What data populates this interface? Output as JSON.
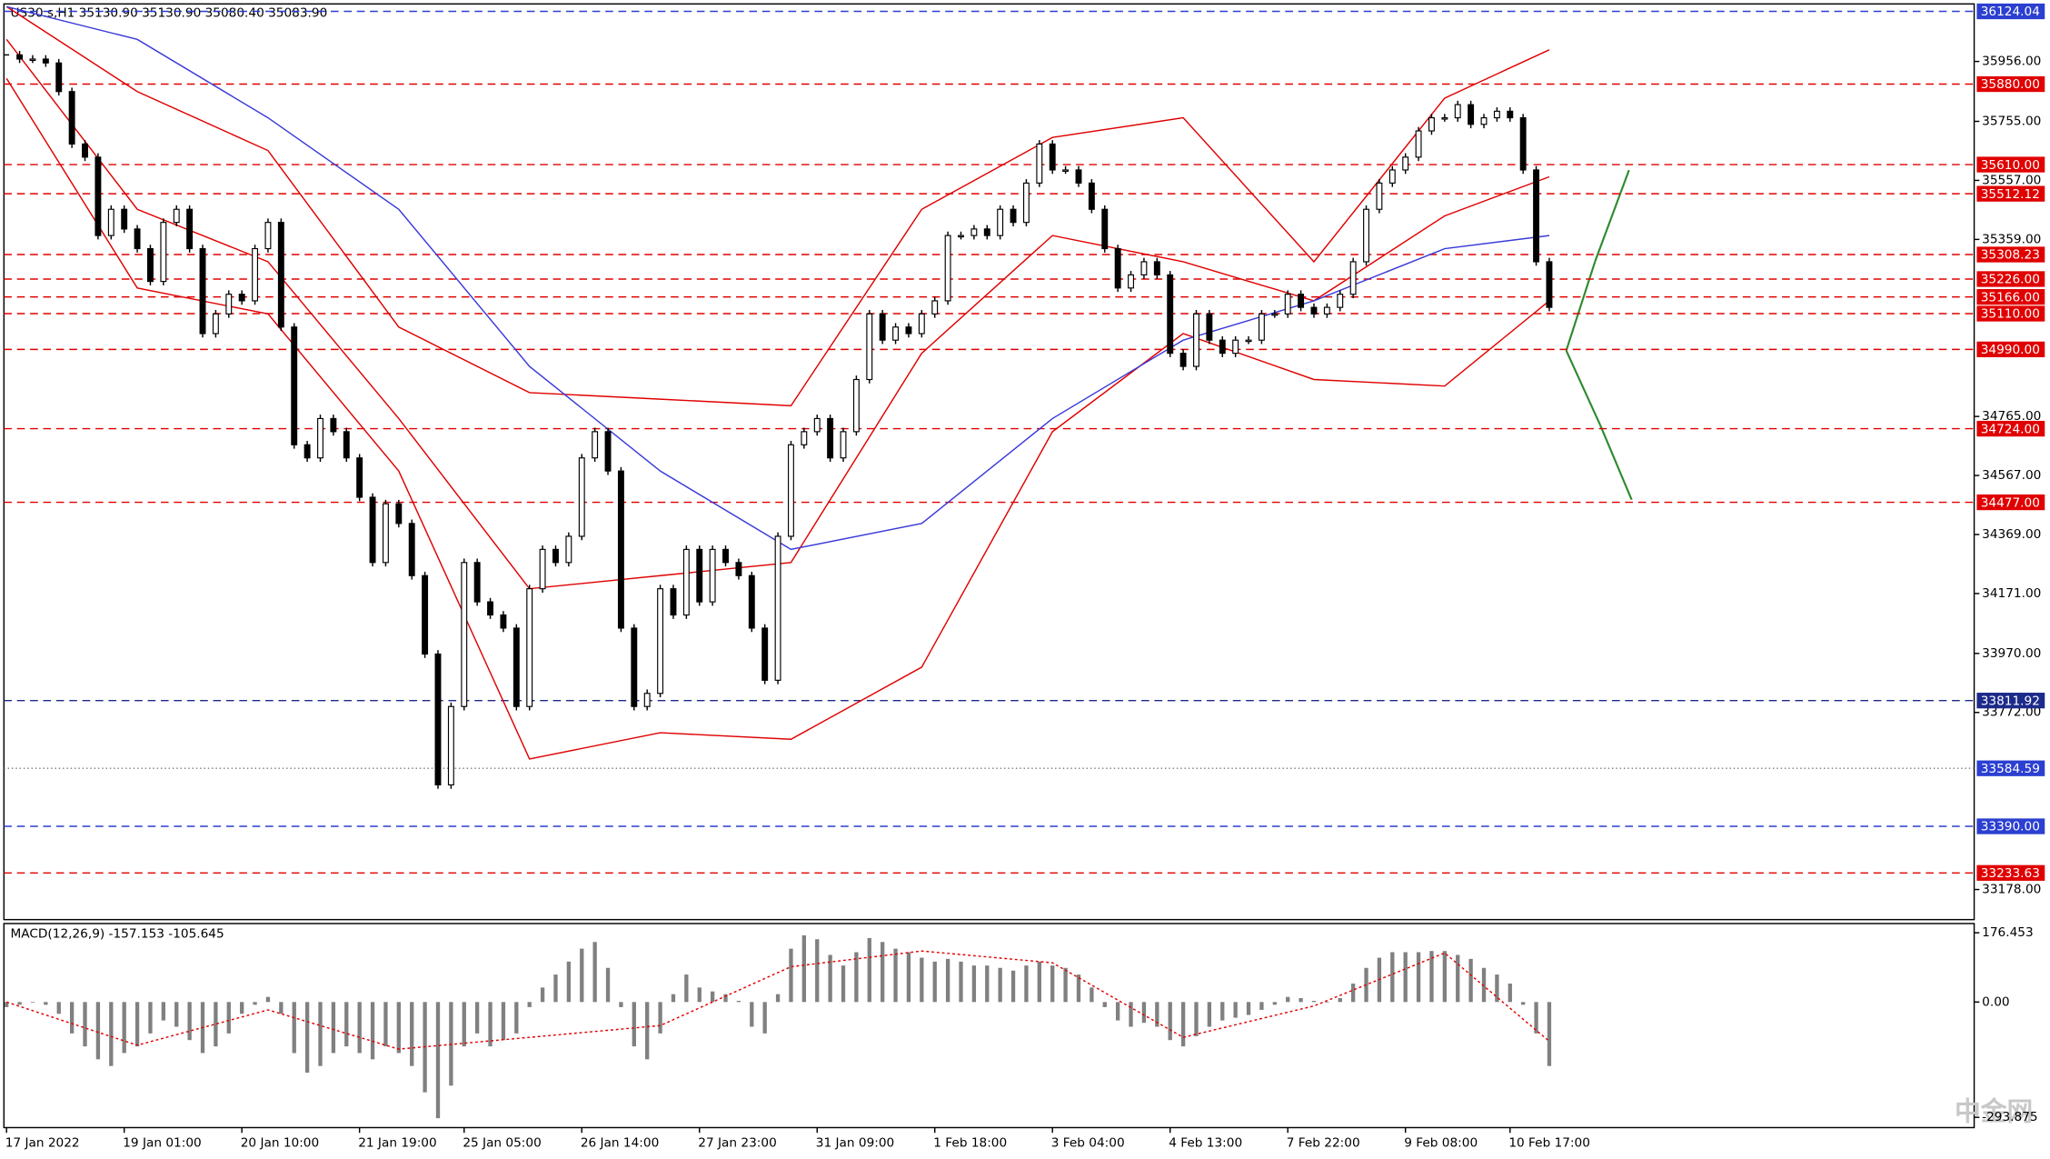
{
  "header": "US30.s,H1  35130.90 35130.90 35080.40 35083.90",
  "watermark": "中金网",
  "chart_data": [
    {
      "type": "candlestick",
      "categories": [
        "17 Jan 2022",
        null,
        null,
        null,
        null,
        null,
        null,
        null,
        null,
        "19 Jan 01:00",
        null,
        null,
        null,
        null,
        null,
        null,
        null,
        null,
        "20 Jan 10:00",
        null,
        null,
        null,
        null,
        null,
        null,
        null,
        null,
        "21 Jan 19:00",
        null,
        null,
        null,
        null,
        null,
        null,
        null,
        "25 Jan 05:00",
        null,
        null,
        null,
        null,
        null,
        null,
        null,
        null,
        "26 Jan 14:00",
        null,
        null,
        null,
        null,
        null,
        null,
        null,
        null,
        "27 Jan 23:00",
        null,
        null,
        null,
        null,
        null,
        null,
        null,
        null,
        "31 Jan 09:00",
        null,
        null,
        null,
        null,
        null,
        null,
        null,
        null,
        "1 Feb 18:00",
        null,
        null,
        null,
        null,
        null,
        null,
        null,
        null,
        "3 Feb 04:00",
        null,
        null,
        null,
        null,
        null,
        null,
        null,
        null,
        "4 Feb 13:00",
        null,
        null,
        null,
        null,
        null,
        null,
        null,
        null,
        "7 Feb 22:00",
        null,
        null,
        null,
        null,
        null,
        null,
        null,
        null,
        "9 Feb 08:00",
        null,
        null,
        null,
        null,
        null,
        null,
        null,
        "10 Feb 17:00",
        null,
        null,
        null
      ],
      "values": [
        35978,
        35964,
        35964,
        35951,
        35855,
        35679,
        35635,
        35372,
        35460,
        35394,
        35328,
        35218,
        35416,
        35460,
        35328,
        35043,
        35109,
        35175,
        35153,
        35328,
        35416,
        35065,
        34670,
        34626,
        34758,
        34714,
        34626,
        34494,
        34275,
        34472,
        34406,
        34231,
        33968,
        33529,
        33792,
        34275,
        34143,
        34099,
        34055,
        33792,
        34187,
        34319,
        34275,
        34363,
        34626,
        34714,
        34582,
        34055,
        33792,
        33836,
        34187,
        34099,
        34319,
        34143,
        34319,
        34275,
        34231,
        34055,
        33880,
        34363,
        34670,
        34714,
        34758,
        34626,
        34714,
        34889,
        35109,
        35021,
        35065,
        35043,
        35109,
        35153,
        35372,
        35372,
        35394,
        35372,
        35460,
        35416,
        35548,
        35679,
        35592,
        35592,
        35548,
        35460,
        35328,
        35196,
        35240,
        35284,
        35240,
        34977,
        34933,
        35109,
        35021,
        34977,
        35021,
        35021,
        35109,
        35109,
        35175,
        35131,
        35109,
        35131,
        35175,
        35284,
        35460,
        35548,
        35592,
        35635,
        35723,
        35767,
        35767,
        35811,
        35745,
        35767,
        35789,
        35767,
        35592,
        35284,
        35131
      ],
      "ylim": [
        33077,
        36149
      ],
      "yticks": [
        {
          "value": 35956,
          "label": "35956.00"
        },
        {
          "value": 35755,
          "label": "35755.00"
        },
        {
          "value": 35557,
          "label": "35557.00"
        },
        {
          "value": 35359,
          "label": "35359.00"
        },
        {
          "value": 34765,
          "label": "34765.00"
        },
        {
          "value": 34567,
          "label": "34567.00"
        },
        {
          "value": 34369,
          "label": "34369.00"
        },
        {
          "value": 34171,
          "label": "34171.00"
        },
        {
          "value": 33970,
          "label": "33970.00"
        },
        {
          "value": 33772,
          "label": "33772.00"
        },
        {
          "value": 33178,
          "label": "33178.00"
        }
      ],
      "overlays": [
        {
          "color": "#e00000",
          "x": [
            0,
            10,
            20,
            30,
            40,
            50,
            60,
            70,
            80,
            90,
            100,
            110,
            118
          ],
          "values": [
            36140,
            35855,
            35657,
            35065,
            34845,
            34823,
            34801,
            35460,
            35701,
            35767,
            35284,
            35833,
            35995
          ]
        },
        {
          "color": "#e00000",
          "x": [
            0,
            10,
            20,
            30,
            40,
            50,
            60,
            70,
            80,
            90,
            100,
            110,
            118
          ],
          "values": [
            36030,
            35460,
            35284,
            34758,
            34187,
            34231,
            34275,
            34977,
            35372,
            35284,
            35153,
            35438,
            35569
          ]
        },
        {
          "color": "#e00000",
          "x": [
            0,
            10,
            20,
            30,
            40,
            50,
            60,
            70,
            80,
            90,
            100,
            110,
            118
          ],
          "values": [
            35899,
            35196,
            35109,
            34582,
            33616,
            33704,
            33682,
            33924,
            34714,
            35043,
            34889,
            34867,
            35153
          ]
        },
        {
          "color": "#3a3ad8",
          "x": [
            0,
            10,
            20,
            30,
            40,
            50,
            60,
            70,
            80,
            90,
            100,
            110,
            118
          ],
          "values": [
            36140,
            36030,
            35767,
            35460,
            34933,
            34582,
            34319,
            34406,
            34758,
            35021,
            35153,
            35328,
            35372
          ]
        }
      ],
      "levels": [
        {
          "value": 36124.04,
          "label": "36124.04",
          "color": "#2b3fd0",
          "style": "dashed"
        },
        {
          "value": 35880,
          "label": "35880.00",
          "color": "#e00000",
          "style": "dashed"
        },
        {
          "value": 35610,
          "label": "35610.00",
          "color": "#e00000",
          "style": "dashed"
        },
        {
          "value": 35512.12,
          "label": "35512.12",
          "color": "#e00000",
          "style": "dashed"
        },
        {
          "value": 35308.23,
          "label": "35308.23",
          "color": "#e00000",
          "style": "dashed"
        },
        {
          "value": 35226,
          "label": "35226.00",
          "color": "#e00000",
          "style": "dashed"
        },
        {
          "value": 35166,
          "label": "35166.00",
          "color": "#e00000",
          "style": "dashed"
        },
        {
          "value": 35110,
          "label": "35110.00",
          "color": "#e00000",
          "style": "dashed"
        },
        {
          "value": 34990,
          "label": "34990.00",
          "color": "#e00000",
          "style": "dashed"
        },
        {
          "value": 34724,
          "label": "34724.00",
          "color": "#e00000",
          "style": "dashed"
        },
        {
          "value": 34477,
          "label": "34477.00",
          "color": "#e00000",
          "style": "dashed"
        },
        {
          "value": 33811.92,
          "label": "33811.92",
          "color": "#1c2a8a",
          "style": "dashed"
        },
        {
          "value": 33584.59,
          "label": "33584.59",
          "color": "#2b3fd0",
          "style": "dotted"
        },
        {
          "value": 33390,
          "label": "33390.00",
          "color": "#2b3fd0",
          "style": "dashed"
        },
        {
          "value": 33233.63,
          "label": "33233.63",
          "color": "#e00000",
          "style": "dashed"
        }
      ]
    },
    {
      "type": "bar",
      "title": "MACD(12,26,9) -157.153 -105.645",
      "color": "#808080",
      "values": [
        -13,
        -7,
        0,
        -7,
        -30,
        -80,
        -113,
        -146,
        -163,
        -130,
        -113,
        -80,
        -47,
        -63,
        -97,
        -130,
        -113,
        -80,
        -30,
        -7,
        13,
        -30,
        -130,
        -180,
        -163,
        -130,
        -113,
        -130,
        -146,
        -113,
        -130,
        -163,
        -230,
        -296,
        -213,
        -113,
        -80,
        -113,
        -97,
        -80,
        -13,
        37,
        70,
        103,
        136,
        153,
        87,
        -13,
        -113,
        -146,
        -80,
        20,
        70,
        37,
        27,
        20,
        3,
        -63,
        -80,
        20,
        136,
        170,
        160,
        120,
        93,
        127,
        163,
        153,
        136,
        127,
        113,
        103,
        110,
        103,
        93,
        93,
        87,
        80,
        93,
        103,
        93,
        87,
        70,
        37,
        -13,
        -47,
        -63,
        -53,
        -63,
        -97,
        -113,
        -87,
        -63,
        -47,
        -40,
        -33,
        -20,
        -7,
        13,
        10,
        3,
        0,
        10,
        47,
        87,
        113,
        127,
        127,
        127,
        130,
        130,
        120,
        110,
        87,
        70,
        47,
        -7,
        -80,
        -163
      ],
      "ylim": [
        -320,
        200
      ],
      "yticks": [
        176.453,
        {
          "value": 0,
          "label": "0.00"
        },
        -293.875
      ],
      "signal": {
        "color": "#e00000",
        "x": [
          0,
          10,
          20,
          30,
          40,
          50,
          60,
          70,
          80,
          90,
          100,
          110,
          118
        ],
        "values": [
          0,
          -110,
          -20,
          -120,
          -90,
          -60,
          90,
          130,
          100,
          -90,
          -10,
          125,
          -100
        ]
      }
    }
  ]
}
